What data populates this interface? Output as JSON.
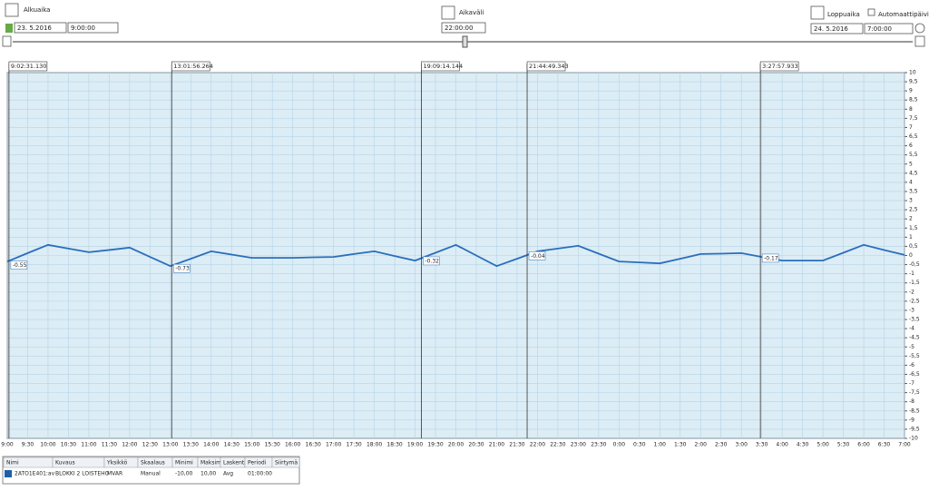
{
  "controls": {
    "start_label": "Alkuaika",
    "start_date": "23. 5.2016",
    "start_time": "9:00:00",
    "interval_label": "Aikaväli",
    "interval": "22:00:00",
    "end_label": "Loppuaika",
    "end_date": "24. 5.2016",
    "end_time": "7:00:00",
    "auto_update": "Automaattipäivitys"
  },
  "chart_data": {
    "type": "line",
    "categories": [
      "9:00",
      "9:30",
      "10:00",
      "10:30",
      "11:00",
      "11:30",
      "12:00",
      "12:30",
      "13:00",
      "13:30",
      "14:00",
      "14:30",
      "15:00",
      "15:30",
      "16:00",
      "16:30",
      "17:00",
      "17:30",
      "18:00",
      "18:30",
      "19:00",
      "19:30",
      "20:00",
      "20:30",
      "21:00",
      "21:30",
      "22:00",
      "22:30",
      "23:00",
      "23:30",
      "0:00",
      "0:30",
      "1:00",
      "1:30",
      "2:00",
      "2:30",
      "3:00",
      "3:30",
      "4:00",
      "4:30",
      "5:00",
      "5:30",
      "6:00",
      "6:30",
      "7:00"
    ],
    "series": [
      {
        "name": "2ATO1E401:av",
        "color": "#2a6ebb",
        "values": [
          -0.33,
          0.13,
          0.58,
          0.38,
          0.18,
          0.3,
          0.43,
          -0.08,
          -0.58,
          -0.18,
          0.23,
          0.05,
          -0.13,
          -0.13,
          -0.13,
          -0.1,
          -0.08,
          0.08,
          0.23,
          -0.03,
          -0.28,
          0.15,
          0.58,
          0,
          -0.58,
          -0.18,
          0.23,
          0.38,
          0.53,
          0.1,
          -0.33,
          -0.38,
          -0.43,
          -0.18,
          0.08,
          0.1,
          0.13,
          -0.08,
          -0.28,
          -0.28,
          -0.28,
          0.15,
          0.58,
          0.3,
          0.03
        ]
      }
    ],
    "cursors": [
      {
        "time": "9:02:31.130",
        "value": -0.55
      },
      {
        "time": "13:01:56.264",
        "value": -0.73
      },
      {
        "time": "19:09:14.144",
        "value": -0.32
      },
      {
        "time": "21:44:49.343",
        "value": -0.04
      },
      {
        "time": "3:27:57.933",
        "value": -0.17
      }
    ],
    "ylim": [
      -10,
      10
    ],
    "yticks": [
      10,
      {
        "value": 9.5,
        "label": "9,5"
      },
      9,
      {
        "value": 8.5,
        "label": "8,5"
      },
      8,
      {
        "value": 7.5,
        "label": "7,5"
      },
      7,
      {
        "value": 6.5,
        "label": "6,5"
      },
      6,
      {
        "value": 5.5,
        "label": "5,5"
      },
      5,
      {
        "value": 4.5,
        "label": "4,5"
      },
      4,
      {
        "value": 3.5,
        "label": "3,5"
      },
      3,
      {
        "value": 2.5,
        "label": "2,5"
      },
      2,
      {
        "value": 1.5,
        "label": "1,5"
      },
      1,
      {
        "value": 0.5,
        "label": "0,5"
      },
      0,
      {
        "value": -0.5,
        "label": "-0,5"
      },
      -1,
      {
        "value": -1.5,
        "label": "-1,5"
      },
      -2,
      {
        "value": -2.5,
        "label": "-2,5"
      },
      -3,
      {
        "value": -3.5,
        "label": "-3,5"
      },
      -4,
      {
        "value": -4.5,
        "label": "-4,5"
      },
      -5,
      {
        "value": -5.5,
        "label": "-5,5"
      },
      -6,
      {
        "value": -6.5,
        "label": "-6,5"
      },
      -7,
      {
        "value": -7.5,
        "label": "-7,5"
      },
      -8,
      {
        "value": -8.5,
        "label": "-8,5"
      },
      -9,
      {
        "value": -9.5,
        "label": "-9,5"
      },
      -10
    ],
    "grid": true
  },
  "table": {
    "headers": [
      "Nimi",
      "Kuvaus",
      "Yksikkö",
      "Skaalaus",
      "Minimi",
      "Maksimi",
      "Laskenta",
      "Periodi",
      "Siirtymä"
    ],
    "rows": [
      [
        "2ATO1E401:av",
        "BLOKKI 2 LOISTEHO",
        "MVAR",
        "Manual",
        "-10,00",
        "10,00",
        "Avg",
        "01:00:00"
      ]
    ]
  }
}
